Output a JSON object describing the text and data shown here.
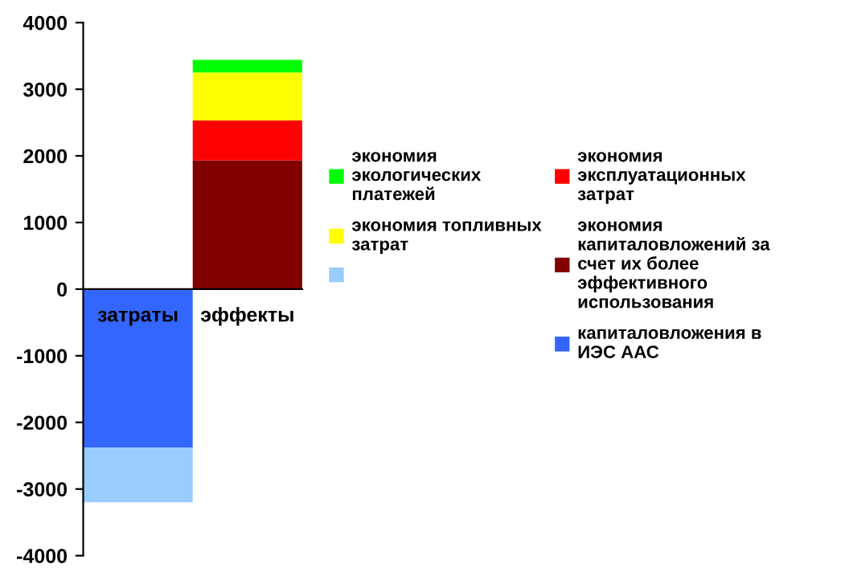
{
  "chart_data": {
    "type": "bar",
    "stacked": true,
    "categories": [
      "затраты",
      "эффекты"
    ],
    "series": [
      {
        "color": "#3366ff",
        "values": [
          -2380,
          null
        ],
        "name": "капиталовложения в ИЭС ААС"
      },
      {
        "color": "#99ccff",
        "values": [
          -820,
          null
        ]
      },
      {
        "color": "#800000",
        "values": [
          null,
          1930
        ],
        "name": "экономия капиталовложений за счет их более эффективного использования"
      },
      {
        "color": "#ff0000",
        "values": [
          null,
          600
        ],
        "name": "экономия эксплуатационных затрат"
      },
      {
        "color": "#ffff00",
        "values": [
          null,
          720
        ],
        "name": "экономия топливных затрат"
      },
      {
        "color": "#00ff00",
        "values": [
          null,
          190
        ],
        "name": "экономия экологических платежей"
      }
    ],
    "ylim": [
      -4000,
      4000
    ],
    "yticks": [
      -4000,
      -3000,
      -2000,
      -1000,
      0,
      1000,
      2000,
      3000,
      4000
    ],
    "grid": false,
    "legend": "right"
  }
}
